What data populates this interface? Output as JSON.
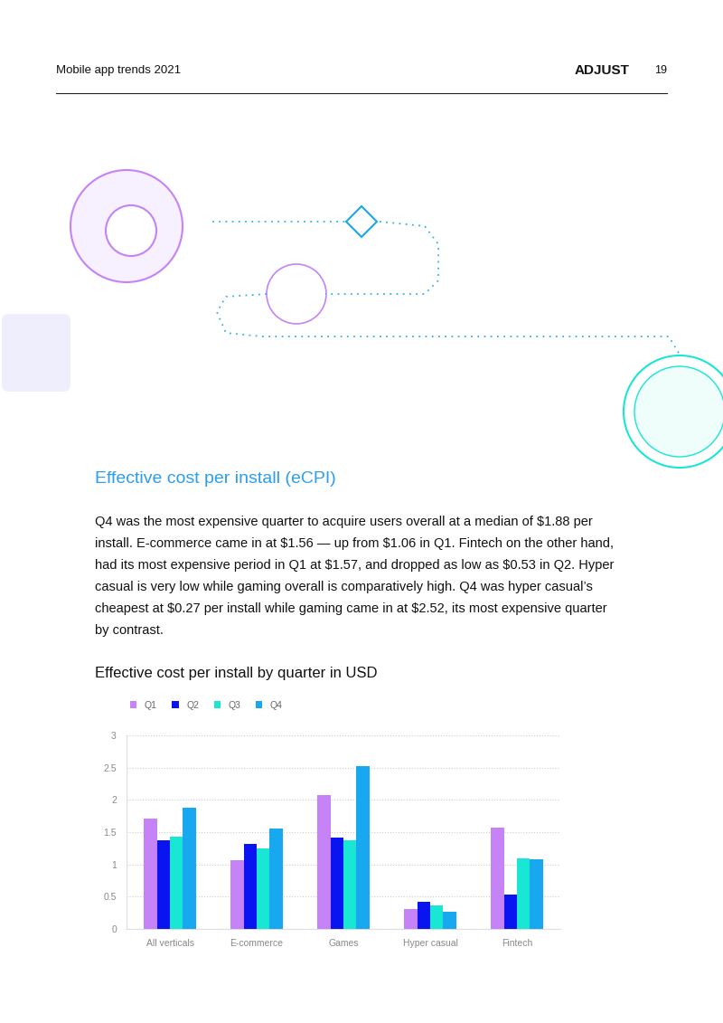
{
  "header": {
    "left": "Mobile app trends 2021",
    "logo": "ADJUST",
    "page": "19"
  },
  "section": {
    "heading": "Effective cost per install (eCPI)",
    "body": [
      "Q4 was the most expensive quarter to acquire users overall at a median of $1.88 per",
      "install. E-commerce came in at $1.56 — up from $1.06 in Q1. Fintech on the other hand,",
      "had its most expensive period in Q1 at $1.57, and dropped as low as $0.53 in Q2. Hyper",
      "casual is very low while gaming overall is comparatively high. Q4 was hyper casual’s",
      "cheapest at $0.27 per install while gaming came in at $2.52, its most expensive quarter",
      "by contrast."
    ]
  },
  "chart_data": {
    "type": "bar",
    "title": "Effective cost per install by quarter in USD",
    "categories": [
      "All verticals",
      "E-commerce",
      "Games",
      "Hyper casual",
      "Fintech"
    ],
    "series": [
      {
        "name": "Q1",
        "color": "#c583f7",
        "values": [
          1.71,
          1.06,
          2.08,
          0.31,
          1.57
        ]
      },
      {
        "name": "Q2",
        "color": "#0a14f0",
        "values": [
          1.38,
          1.32,
          1.42,
          0.42,
          0.53
        ]
      },
      {
        "name": "Q3",
        "color": "#19e6d4",
        "values": [
          1.43,
          1.25,
          1.38,
          0.36,
          1.09
        ]
      },
      {
        "name": "Q4",
        "color": "#18a8f0",
        "values": [
          1.88,
          1.56,
          2.52,
          0.27,
          1.08
        ]
      }
    ],
    "ylim": [
      0,
      3
    ],
    "yticks": [
      0,
      0.5,
      1,
      1.5,
      2,
      2.5,
      3
    ],
    "grid": true,
    "legend": "upper left"
  }
}
